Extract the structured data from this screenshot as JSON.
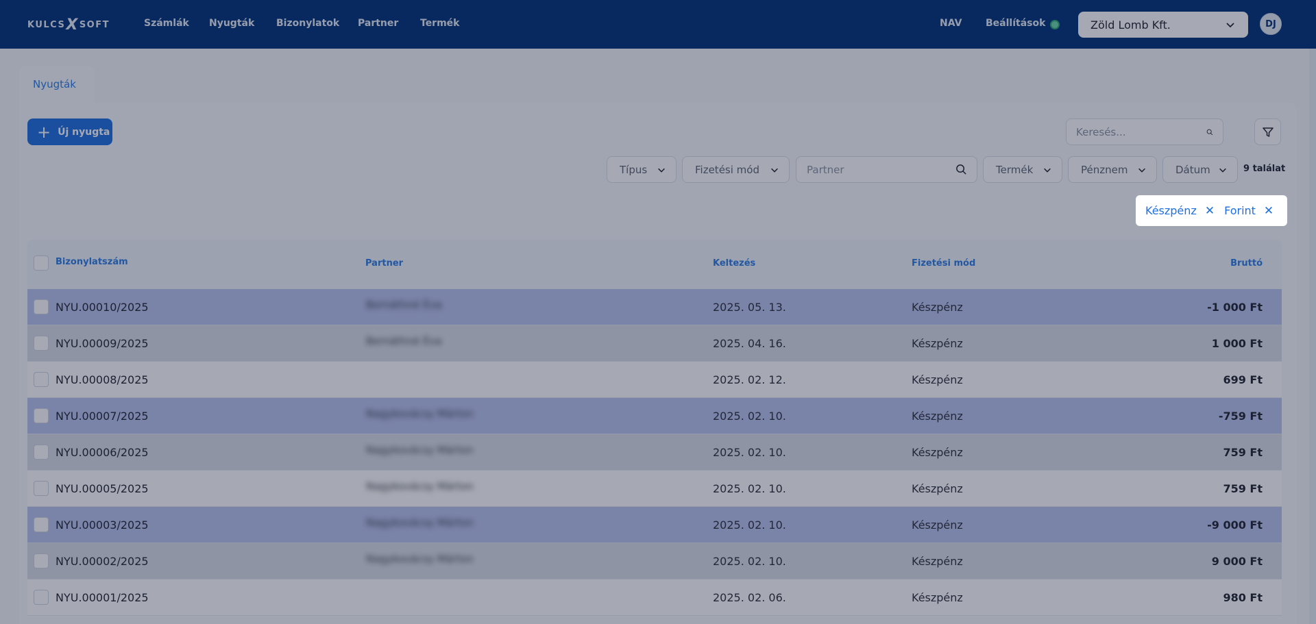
{
  "app": {
    "logo_left": "KULCS",
    "logo_x": "X",
    "logo_right": "SOFT"
  },
  "nav": {
    "items": [
      "Számlák",
      "Nyugták",
      "Bizonylatok",
      "Partner",
      "Termék"
    ],
    "right_items": [
      "NAV",
      "Beállítások"
    ],
    "company": "Zöld Lomb Kft.",
    "avatar": "DJ"
  },
  "page": {
    "tab": "Nyugták",
    "new_button": "Új nyugta",
    "search_placeholder": "Keresés...",
    "partner_placeholder": "Partner",
    "result_count": "9 találat"
  },
  "filters": [
    "Típus",
    "Fizetési mód",
    "Termék",
    "Pénznem",
    "Dátum"
  ],
  "chips": [
    "Készpénz",
    "Forint"
  ],
  "table": {
    "headers": {
      "doc": "Bizonylatszám",
      "partner": "Partner",
      "date": "Keltezés",
      "payment": "Fizetési mód",
      "gross": "Bruttó"
    },
    "rows": [
      {
        "doc": "NYU.00010/2025",
        "partner": "Bernáthné Éva",
        "date": "2025. 05. 13.",
        "payment": "Készpénz",
        "gross": "-1 000 Ft"
      },
      {
        "doc": "NYU.00009/2025",
        "partner": "Bernáthné Éva",
        "date": "2025. 04. 16.",
        "payment": "Készpénz",
        "gross": "1 000 Ft"
      },
      {
        "doc": "NYU.00008/2025",
        "partner": "",
        "date": "2025. 02. 12.",
        "payment": "Készpénz",
        "gross": "699 Ft"
      },
      {
        "doc": "NYU.00007/2025",
        "partner": "Nagykovácsy Márton",
        "date": "2025. 02. 10.",
        "payment": "Készpénz",
        "gross": "-759 Ft"
      },
      {
        "doc": "NYU.00006/2025",
        "partner": "Nagykovácsy Márton",
        "date": "2025. 02. 10.",
        "payment": "Készpénz",
        "gross": "759 Ft"
      },
      {
        "doc": "NYU.00005/2025",
        "partner": "Nagykovácsy Márton",
        "date": "2025. 02. 10.",
        "payment": "Készpénz",
        "gross": "759 Ft"
      },
      {
        "doc": "NYU.00003/2025",
        "partner": "Nagykovácsy Márton",
        "date": "2025. 02. 10.",
        "payment": "Készpénz",
        "gross": "-9 000 Ft"
      },
      {
        "doc": "NYU.00002/2025",
        "partner": "Nagykovácsy Márton",
        "date": "2025. 02. 10.",
        "payment": "Készpénz",
        "gross": "9 000 Ft"
      },
      {
        "doc": "NYU.00001/2025",
        "partner": "",
        "date": "2025. 02. 06.",
        "payment": "Készpénz",
        "gross": "980 Ft"
      }
    ]
  },
  "colors": {
    "nav_bg": "#00317a",
    "accent": "#1e6fe0",
    "negative_row": "#b9c3ee",
    "status_online": "#2aa876"
  }
}
